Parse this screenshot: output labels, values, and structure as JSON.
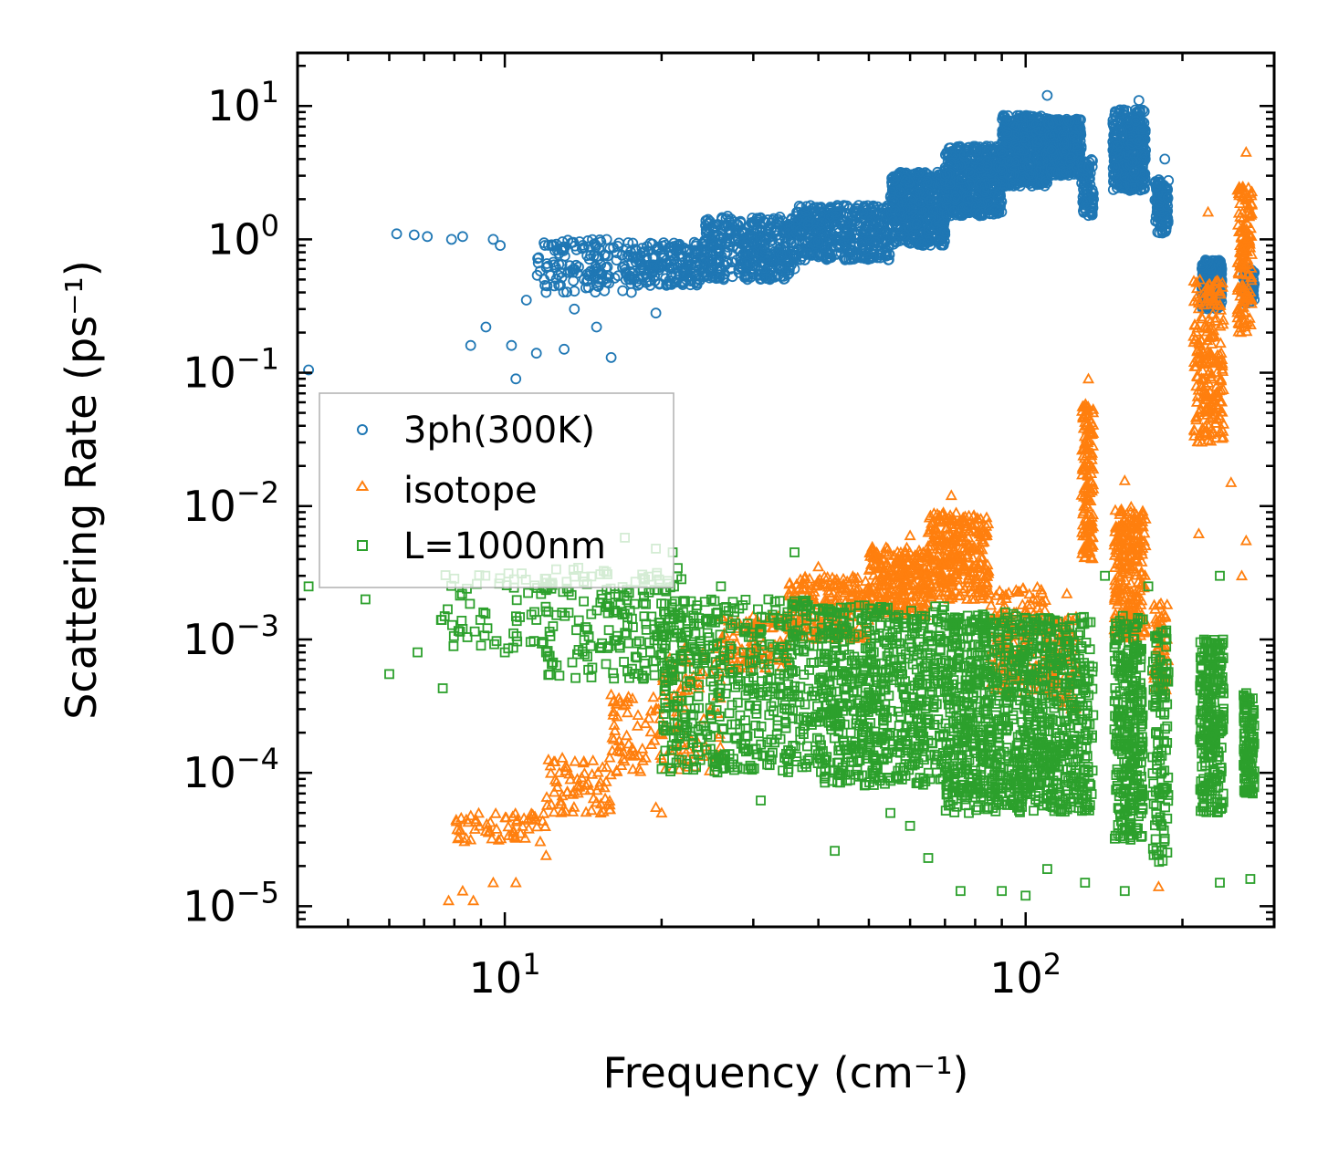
{
  "chart_data": {
    "type": "scatter",
    "title": "",
    "xlabel": "Frequency (cm⁻¹)",
    "ylabel": "Scattering Rate (ps⁻¹)",
    "xscale": "log",
    "yscale": "log",
    "xlim": [
      4,
      300
    ],
    "ylim": [
      7e-06,
      25
    ],
    "x_tick_labels": [
      {
        "base": "10",
        "exp": "1",
        "value": 10
      },
      {
        "base": "10",
        "exp": "2",
        "value": 100
      }
    ],
    "y_tick_labels": [
      {
        "base": "10",
        "exp": "−5",
        "value": 1e-05
      },
      {
        "base": "10",
        "exp": "−4",
        "value": 0.0001
      },
      {
        "base": "10",
        "exp": "−3",
        "value": 0.001
      },
      {
        "base": "10",
        "exp": "−2",
        "value": 0.01
      },
      {
        "base": "10",
        "exp": "−1",
        "value": 0.1
      },
      {
        "base": "10",
        "exp": "0",
        "value": 1
      },
      {
        "base": "10",
        "exp": "1",
        "value": 10
      }
    ],
    "legend_position": "center-left",
    "series": [
      {
        "name": "3ph(300K)",
        "marker": "circle",
        "color": "#1f77b4",
        "points": [
          [
            4.2,
            0.105
          ],
          [
            6.2,
            1.1
          ],
          [
            6.7,
            1.08
          ],
          [
            7.1,
            1.05
          ],
          [
            7.9,
            1.0
          ],
          [
            8.3,
            1.05
          ],
          [
            8.6,
            0.16
          ],
          [
            9.2,
            0.22
          ],
          [
            9.5,
            1.0
          ],
          [
            9.8,
            0.9
          ],
          [
            10.3,
            0.16
          ],
          [
            10.5,
            0.09
          ],
          [
            11.0,
            0.35
          ],
          [
            11.5,
            0.14
          ],
          [
            12.0,
            0.4
          ],
          [
            12.4,
            0.9
          ],
          [
            13.0,
            0.15
          ],
          [
            13.6,
            0.3
          ],
          [
            14.2,
            0.5
          ],
          [
            15.0,
            0.22
          ],
          [
            16.0,
            0.13
          ],
          [
            17.5,
            0.4
          ],
          [
            19.5,
            0.28
          ],
          [
            22.0,
            0.6
          ],
          [
            25.0,
            0.7
          ],
          [
            30.0,
            0.8
          ],
          [
            40.0,
            0.95
          ],
          [
            50.0,
            1.3
          ],
          [
            60.0,
            2.0
          ],
          [
            70.0,
            3.0
          ],
          [
            80.0,
            4.0
          ],
          [
            90.0,
            4.5
          ],
          [
            100.0,
            5.5
          ],
          [
            110.0,
            12.0
          ],
          [
            118.0,
            6.0
          ],
          [
            125.0,
            5.0
          ],
          [
            135.0,
            2.0
          ],
          [
            150.0,
            5.0
          ],
          [
            165.0,
            11.0
          ],
          [
            178.0,
            2.5
          ],
          [
            185.0,
            4.0
          ],
          [
            230.0,
            0.5
          ],
          [
            270.0,
            0.4
          ]
        ],
        "bands": [
          [
            11.5,
            17.0,
            0.4,
            1.0,
            130
          ],
          [
            17.0,
            24.0,
            0.45,
            0.95,
            200
          ],
          [
            24.0,
            36.0,
            0.5,
            1.5,
            400
          ],
          [
            36.0,
            55.0,
            0.7,
            1.8,
            450
          ],
          [
            55.0,
            70.0,
            0.9,
            3.2,
            500
          ],
          [
            70.0,
            90.0,
            1.5,
            5.0,
            550
          ],
          [
            90.0,
            110.0,
            2.5,
            8.5,
            500
          ],
          [
            110.0,
            128.0,
            3.0,
            8.0,
            400
          ],
          [
            128.0,
            135.0,
            1.5,
            4.0,
            80
          ],
          [
            147.0,
            170.0,
            2.3,
            9.5,
            400
          ],
          [
            177.0,
            188.0,
            1.1,
            2.8,
            120
          ],
          [
            218.0,
            238.0,
            0.3,
            0.7,
            250
          ],
          [
            262.0,
            275.0,
            0.33,
            0.6,
            80
          ]
        ]
      },
      {
        "name": "isotope",
        "marker": "triangle",
        "color": "#ff7f0e",
        "points": [
          [
            7.8,
            1.1e-05
          ],
          [
            8.3,
            1.3e-05
          ],
          [
            8.7,
            1.1e-05
          ],
          [
            9.5,
            1.5e-05
          ],
          [
            10.5,
            1.5e-05
          ],
          [
            12.0,
            2.4e-05
          ],
          [
            19.5,
            5.5e-05
          ],
          [
            20.0,
            5e-05
          ],
          [
            40.0,
            0.0035
          ],
          [
            60.0,
            0.006
          ],
          [
            72.0,
            0.012
          ],
          [
            120.0,
            0.0022
          ],
          [
            132.0,
            0.09
          ],
          [
            155.0,
            0.0155
          ],
          [
            163.0,
            0.004
          ],
          [
            170.0,
            0.008
          ],
          [
            180.0,
            1.4e-05
          ],
          [
            215.0,
            0.0062
          ],
          [
            224.0,
            1.6
          ],
          [
            232.0,
            0.07
          ],
          [
            248.0,
            0.015
          ],
          [
            258.0,
            0.9
          ],
          [
            260.0,
            0.003
          ],
          [
            265.0,
            4.5
          ],
          [
            265.0,
            0.0055
          ]
        ],
        "bands": [
          [
            8.0,
            12.0,
            3e-05,
            5e-05,
            60
          ],
          [
            12.0,
            16.0,
            5e-05,
            0.00013,
            70
          ],
          [
            16.0,
            20.0,
            0.0001,
            0.0004,
            60
          ],
          [
            20.0,
            26.0,
            0.0001,
            0.0009,
            80
          ],
          [
            26.0,
            35.0,
            0.0006,
            0.0015,
            100
          ],
          [
            35.0,
            50.0,
            0.001,
            0.003,
            200
          ],
          [
            50.0,
            65.0,
            0.0015,
            0.005,
            250
          ],
          [
            65.0,
            85.0,
            0.002,
            0.009,
            300
          ],
          [
            85.0,
            110.0,
            0.0004,
            0.0025,
            150
          ],
          [
            110.0,
            125.0,
            0.0003,
            0.0015,
            80
          ],
          [
            128.0,
            135.0,
            0.004,
            0.06,
            150
          ],
          [
            148.0,
            170.0,
            0.001,
            0.01,
            250
          ],
          [
            176.0,
            188.0,
            0.0004,
            0.002,
            60
          ],
          [
            210.0,
            240.0,
            0.03,
            0.5,
            220
          ],
          [
            255.0,
            272.0,
            0.2,
            2.5,
            150
          ]
        ]
      },
      {
        "name": "L=1000nm",
        "marker": "square",
        "color": "#2ca02c",
        "points": [
          [
            4.2,
            0.0025
          ],
          [
            5.4,
            0.002
          ],
          [
            6.0,
            0.00055
          ],
          [
            6.8,
            0.0008
          ],
          [
            7.6,
            0.00043
          ],
          [
            8.3,
            0.0012
          ],
          [
            9.0,
            0.0009
          ],
          [
            10.0,
            0.0008
          ],
          [
            12.0,
            0.0008
          ],
          [
            17.0,
            0.0058
          ],
          [
            19.5,
            0.0048
          ],
          [
            21.0,
            0.0045
          ],
          [
            26.0,
            0.0025
          ],
          [
            31.0,
            6.2e-05
          ],
          [
            36.0,
            0.0045
          ],
          [
            43.0,
            2.6e-05
          ],
          [
            55.0,
            5e-05
          ],
          [
            60.0,
            4e-05
          ],
          [
            65.0,
            2.3e-05
          ],
          [
            75.0,
            1.3e-05
          ],
          [
            90.0,
            1.3e-05
          ],
          [
            100.0,
            1.2e-05
          ],
          [
            110.0,
            1.9e-05
          ],
          [
            130.0,
            1.5e-05
          ],
          [
            142.0,
            0.003
          ],
          [
            155.0,
            1.3e-05
          ],
          [
            172.0,
            0.0025
          ],
          [
            185.0,
            3.2e-05
          ],
          [
            236.0,
            0.003
          ],
          [
            236.0,
            1.5e-05
          ],
          [
            270.0,
            1.6e-05
          ]
        ],
        "bands": [
          [
            7.5,
            12.0,
            0.0008,
            0.0032,
            60
          ],
          [
            12.0,
            22.0,
            0.0005,
            0.0035,
            200
          ],
          [
            20.0,
            40.0,
            0.0001,
            0.002,
            500
          ],
          [
            40.0,
            70.0,
            8e-05,
            0.0018,
            650
          ],
          [
            70.0,
            100.0,
            5e-05,
            0.0016,
            600
          ],
          [
            100.0,
            135.0,
            5e-05,
            0.0015,
            450
          ],
          [
            148.0,
            168.0,
            3e-05,
            0.0015,
            300
          ],
          [
            175.0,
            188.0,
            2e-05,
            0.0012,
            120
          ],
          [
            216.0,
            240.0,
            5e-05,
            0.001,
            250
          ],
          [
            262.0,
            275.0,
            7e-05,
            0.0004,
            120
          ]
        ]
      }
    ]
  }
}
